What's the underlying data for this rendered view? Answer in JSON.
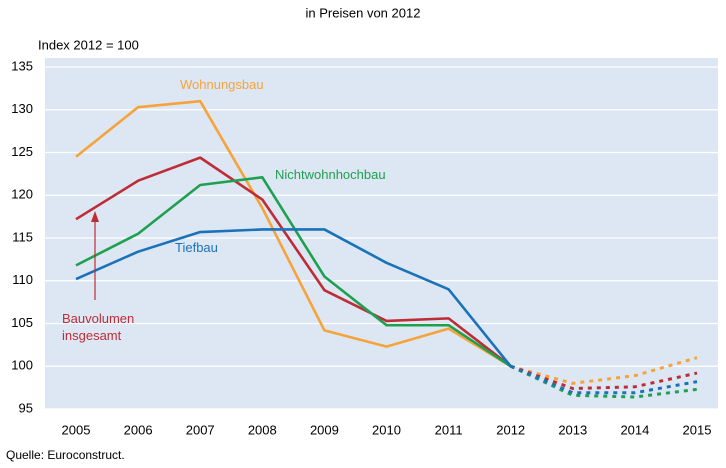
{
  "chart_data": {
    "type": "line",
    "subtitle": "in Preisen von 2012",
    "ylabel": "Index 2012 = 100",
    "source": "Quelle: Euroconstruct.",
    "categories": [
      "2005",
      "2006",
      "2007",
      "2008",
      "2009",
      "2010",
      "2011",
      "2012",
      "2013",
      "2014",
      "2015"
    ],
    "forecast_from": "2012",
    "series": [
      {
        "name": "Wohnungsbau",
        "color": "#f5a33a",
        "values": [
          124.5,
          130.3,
          131.0,
          118.5,
          104.2,
          102.3,
          104.4,
          100,
          98.0,
          98.9,
          101.0
        ]
      },
      {
        "name": "Bauvolumen insgesamt",
        "color": "#be2d37",
        "values": [
          117.2,
          121.7,
          124.4,
          119.5,
          108.9,
          105.3,
          105.6,
          100,
          97.4,
          97.6,
          99.2
        ]
      },
      {
        "name": "Nichtwohnhochbau",
        "color": "#1fa050",
        "values": [
          111.8,
          115.5,
          121.2,
          122.1,
          110.5,
          104.8,
          104.8,
          100,
          96.6,
          96.4,
          97.3
        ]
      },
      {
        "name": "Tiefbau",
        "color": "#1a72b8",
        "values": [
          110.2,
          113.4,
          115.7,
          116.0,
          116.0,
          112.1,
          109.0,
          100,
          96.9,
          96.9,
          98.2
        ]
      }
    ],
    "ylim": [
      95,
      135
    ],
    "yticks": [
      95,
      100,
      105,
      110,
      115,
      120,
      125,
      130,
      135
    ],
    "grid": true
  }
}
